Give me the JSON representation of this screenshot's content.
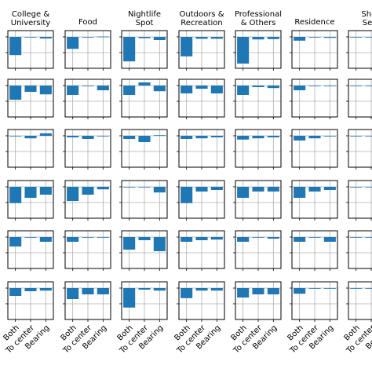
{
  "chart_data": {
    "type": "bar",
    "layout": "small-multiples grid, 6 rows x 7 columns (last column cut off at the right edge)",
    "bar_color": "#1f77b4",
    "grid": true,
    "columns": [
      "College &\nUniversity",
      "Food",
      "Nightlife\nSpot",
      "Outdoors &\nRecreation",
      "Professional\n& Others",
      "Residence",
      "Shop\nServ"
    ],
    "categories": [
      "Both",
      "To center",
      "Bearing"
    ],
    "ylim": [
      -1,
      0.2
    ],
    "panels": [
      [
        [
          -0.58,
          -0.02,
          -0.05
        ],
        [
          -0.38,
          -0.01,
          0.01
        ],
        [
          -0.78,
          -0.04,
          -0.1
        ],
        [
          -0.62,
          -0.06,
          -0.06
        ],
        [
          -0.85,
          -0.08,
          -0.07
        ],
        [
          -0.12,
          0.0,
          -0.03
        ],
        [
          0,
          0,
          0
        ]
      ],
      [
        [
          -0.45,
          -0.2,
          -0.28
        ],
        [
          -0.3,
          0.0,
          -0.15
        ],
        [
          -0.3,
          0.1,
          -0.18
        ],
        [
          -0.25,
          -0.1,
          -0.25
        ],
        [
          -0.3,
          -0.05,
          -0.08
        ],
        [
          -0.15,
          0.0,
          0.0
        ],
        [
          0,
          0,
          0
        ]
      ],
      [
        [
          0.0,
          -0.08,
          0.08
        ],
        [
          -0.05,
          -0.1,
          -0.02
        ],
        [
          -0.1,
          -0.2,
          0.02
        ],
        [
          -0.1,
          -0.08,
          -0.05
        ],
        [
          -0.12,
          -0.08,
          -0.05
        ],
        [
          -0.15,
          -0.08,
          -0.02
        ],
        [
          0,
          0,
          0
        ]
      ],
      [
        [
          -0.52,
          -0.35,
          -0.25
        ],
        [
          -0.45,
          -0.25,
          -0.08
        ],
        [
          0.0,
          0.0,
          -0.18
        ],
        [
          -0.52,
          -0.15,
          -0.1
        ],
        [
          -0.35,
          -0.15,
          -0.15
        ],
        [
          -0.35,
          -0.15,
          -0.1
        ],
        [
          0,
          0,
          0
        ]
      ],
      [
        [
          -0.3,
          0.0,
          -0.15
        ],
        [
          -0.15,
          0.0,
          0.0
        ],
        [
          -0.4,
          -0.1,
          -0.45
        ],
        [
          -0.15,
          -0.1,
          -0.08
        ],
        [
          -0.15,
          -0.01,
          -0.05
        ],
        [
          -0.15,
          0.0,
          -0.15
        ],
        [
          0,
          0,
          0
        ]
      ],
      [
        [
          -0.25,
          -0.1,
          -0.08
        ],
        [
          -0.35,
          -0.2,
          -0.2
        ],
        [
          -0.62,
          -0.05,
          -0.08
        ],
        [
          -0.32,
          -0.08,
          -0.08
        ],
        [
          -0.3,
          -0.2,
          -0.2
        ],
        [
          -0.18,
          -0.02,
          0.0
        ],
        [
          0,
          0,
          0
        ]
      ]
    ]
  }
}
